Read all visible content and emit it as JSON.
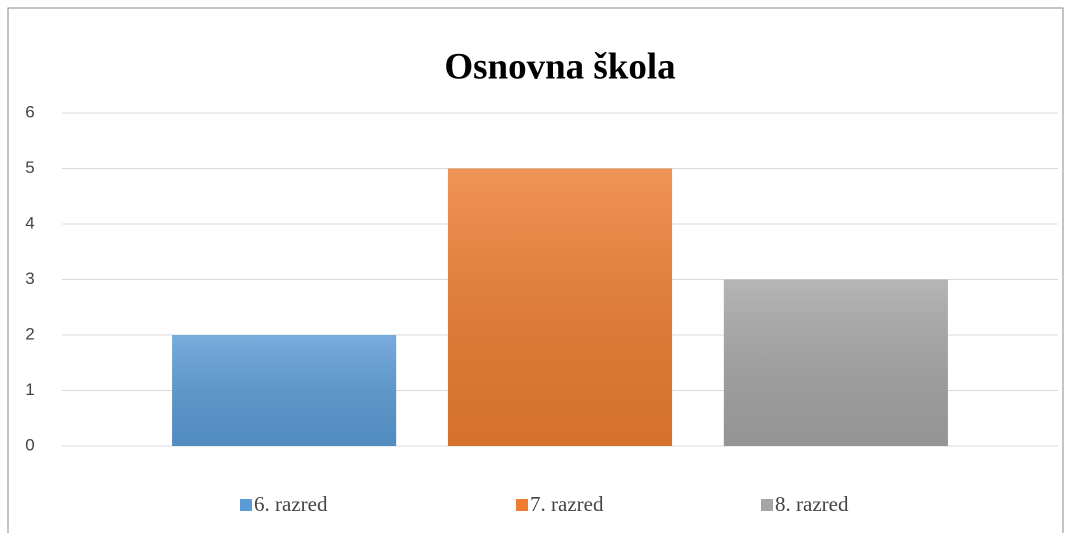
{
  "chart_data": {
    "type": "bar",
    "title": "Osnovna škola",
    "categories": [
      null
    ],
    "series": [
      {
        "name": "6. razred",
        "color": "#5b9bd5",
        "values": [
          2
        ]
      },
      {
        "name": "7. razred",
        "color": "#ed7d31",
        "values": [
          5
        ]
      },
      {
        "name": "8. razred",
        "color": "#a5a5a5",
        "values": [
          3
        ]
      }
    ],
    "ylim": [
      0,
      6
    ],
    "yticks": [
      0,
      1,
      2,
      3,
      4,
      5,
      6
    ],
    "grid": true,
    "legend": "bottom"
  }
}
